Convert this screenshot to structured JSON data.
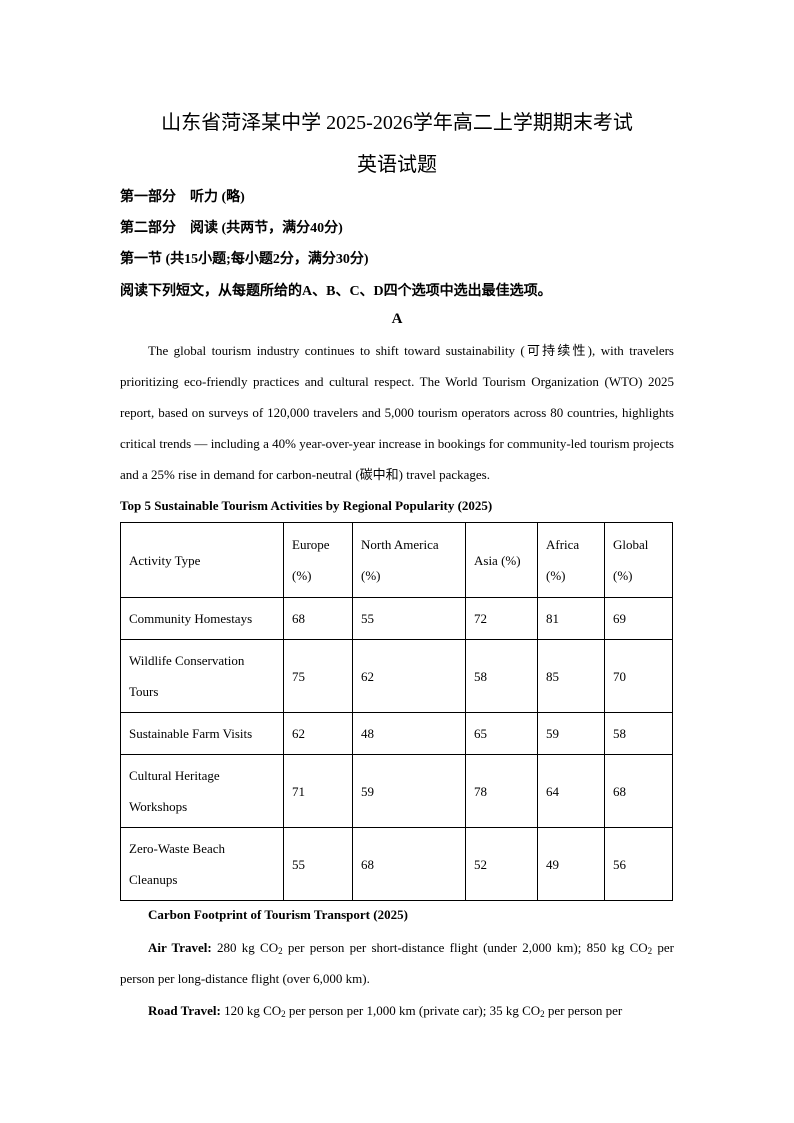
{
  "header": {
    "title": "山东省菏泽某中学 2025-2026学年高二上学期期末考试",
    "subtitle": "英语试题",
    "part1": "第一部分　听力 (略)",
    "part2": "第二部分　阅读 (共两节，满分40分)",
    "section1": "第一节 (共15小题;每小题2分，满分30分)",
    "instruction": "阅读下列短文，从每题所给的A、B、C、D四个选项中选出最佳选项。",
    "passage_label": "A"
  },
  "passage": {
    "paragraph": "The global tourism industry continues to shift toward sustainability (可持续性), with travelers prioritizing eco-friendly practices and cultural respect. The World Tourism Organization (WTO) 2025 report, based on surveys of 120,000 travelers and 5,000 tourism operators across 80 countries, highlights critical trends — including a 40% year-over-year increase in bookings for community-led tourism projects and a 25% rise in demand for carbon-neutral (碳中和) travel packages."
  },
  "table": {
    "caption": "Top 5 Sustainable Tourism Activities by Regional Popularity (2025)",
    "headers": [
      "Activity Type",
      "Europe (%)",
      "North America (%)",
      "Asia (%)",
      "Africa (%)",
      "Global (%)"
    ],
    "rows": [
      [
        "Community Homestays",
        "68",
        "55",
        "72",
        "81",
        "69"
      ],
      [
        "Wildlife Conservation Tours",
        "75",
        "62",
        "58",
        "85",
        "70"
      ],
      [
        "Sustainable Farm Visits",
        "62",
        "48",
        "65",
        "59",
        "58"
      ],
      [
        "Cultural Heritage Workshops",
        "71",
        "59",
        "78",
        "64",
        "68"
      ],
      [
        "Zero-Waste Beach Cleanups",
        "55",
        "68",
        "52",
        "49",
        "56"
      ]
    ]
  },
  "carbon": {
    "heading": "Carbon Footprint of Tourism Transport (2025)",
    "air_label": "Air Travel:",
    "air_a": "280 kg CO",
    "air_b": " per person per short-distance flight (under 2,000 km); 850 kg CO",
    "air_c": " per person per long-distance flight (over 6,000 km).",
    "road_label": "Road Travel:",
    "road_a": "120 kg CO",
    "road_b": " per person per 1,000 km (private car); 35 kg CO",
    "road_c": " per person per",
    "sub": "2"
  }
}
